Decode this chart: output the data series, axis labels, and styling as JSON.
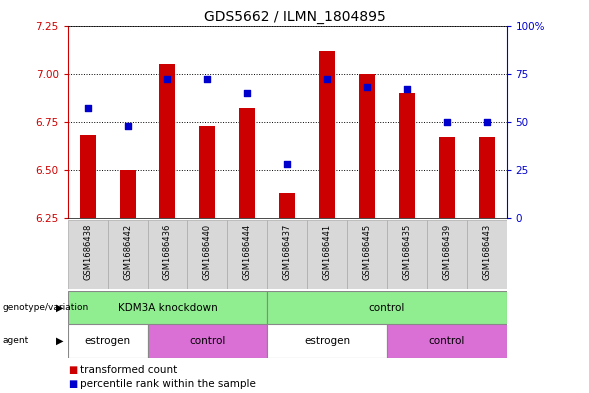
{
  "title": "GDS5662 / ILMN_1804895",
  "samples": [
    "GSM1686438",
    "GSM1686442",
    "GSM1686436",
    "GSM1686440",
    "GSM1686444",
    "GSM1686437",
    "GSM1686441",
    "GSM1686445",
    "GSM1686435",
    "GSM1686439",
    "GSM1686443"
  ],
  "transformed_count": [
    6.68,
    6.5,
    7.05,
    6.73,
    6.82,
    6.38,
    7.12,
    7.0,
    6.9,
    6.67,
    6.67
  ],
  "percentile_rank": [
    57,
    48,
    72,
    72,
    65,
    28,
    72,
    68,
    67,
    50,
    50
  ],
  "ylim_left": [
    6.25,
    7.25
  ],
  "ylim_right": [
    0,
    100
  ],
  "left_yticks": [
    6.25,
    6.5,
    6.75,
    7.0,
    7.25
  ],
  "right_yticks": [
    0,
    25,
    50,
    75,
    100
  ],
  "right_yticklabels": [
    "0",
    "25",
    "50",
    "75",
    "100%"
  ],
  "bar_color": "#cc0000",
  "marker_color": "#0000cc",
  "genotype_groups": [
    {
      "label": "KDM3A knockdown",
      "start": 0,
      "end": 5,
      "color": "#90ee90"
    },
    {
      "label": "control",
      "start": 5,
      "end": 11,
      "color": "#90ee90"
    }
  ],
  "agent_groups": [
    {
      "label": "estrogen",
      "start": 0,
      "end": 2,
      "color": "#ffffff"
    },
    {
      "label": "control",
      "start": 2,
      "end": 5,
      "color": "#da70d6"
    },
    {
      "label": "estrogen",
      "start": 5,
      "end": 8,
      "color": "#ffffff"
    },
    {
      "label": "control",
      "start": 8,
      "end": 11,
      "color": "#da70d6"
    }
  ],
  "legend_label_count": "transformed count",
  "legend_label_pct": "percentile rank within the sample",
  "title_fontsize": 10,
  "tick_fontsize": 7.5,
  "sample_fontsize": 6.0,
  "row_fontsize": 7.5,
  "legend_fontsize": 7.5
}
